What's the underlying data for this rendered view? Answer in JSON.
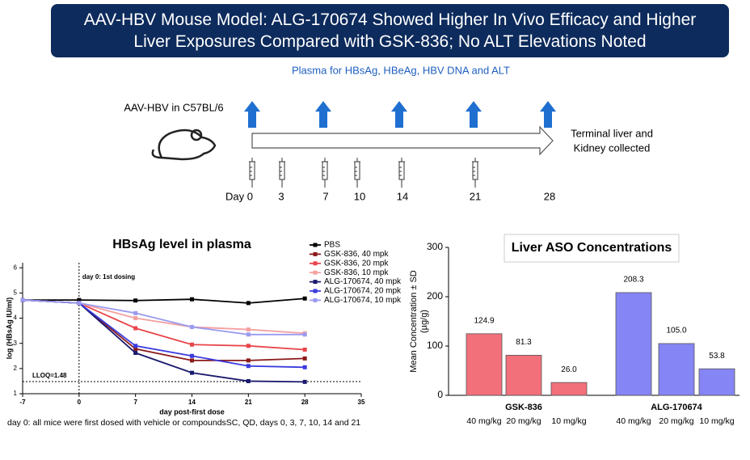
{
  "header": {
    "title": "AAV-HBV Mouse Model: ALG-170674 Showed Higher In Vivo Efficacy and Higher Liver Exposures Compared with GSK-836; No ALT Elevations Noted"
  },
  "timeline": {
    "sampling_label": "Plasma for HBsAg, HBeAg, HBV DNA and ALT",
    "model_label": "AAV-HBV in C57BL/6",
    "end_label": [
      "Terminal liver and",
      "Kidney collected"
    ],
    "days": [
      "Day 0",
      "3",
      "7",
      "10",
      "14",
      "21",
      "28"
    ]
  },
  "chart_data": [
    {
      "type": "line",
      "title": "HBsAg level in plasma",
      "x_label": "day post-first dose",
      "y_label": "log (HBsAg IU/ml)",
      "x": [
        -7,
        0,
        7,
        14,
        21,
        28
      ],
      "xlim": [
        -7,
        35
      ],
      "xticks": [
        -7,
        0,
        7,
        14,
        21,
        28,
        35
      ],
      "ylim": [
        1,
        6.2
      ],
      "yticks": [
        1,
        2,
        3,
        4,
        5,
        6
      ],
      "annotation": "day 0: 1st dosing",
      "dosing_day": 0,
      "lloq": 1.48,
      "lloq_label": "LLOQ=1.48",
      "legend": "upper right",
      "footnote": "day 0: all mice were first dosed with vehicle or compoundsSC, QD, days 0, 3, 7, 10, 14 and 21",
      "series": [
        {
          "name": "PBS",
          "color": "#000000",
          "values": [
            4.72,
            4.72,
            4.7,
            4.75,
            4.6,
            4.78
          ]
        },
        {
          "name": "GSK-836, 40 mpk",
          "color": "#8b1a1a",
          "values": [
            4.72,
            4.6,
            2.78,
            2.32,
            2.32,
            2.4
          ]
        },
        {
          "name": "GSK-836, 20 mpk",
          "color": "#e8454a",
          "values": [
            4.72,
            4.6,
            3.6,
            2.95,
            2.9,
            2.75
          ]
        },
        {
          "name": "GSK-836, 10 mpk",
          "color": "#f4a0a0",
          "values": [
            4.72,
            4.6,
            4.0,
            3.65,
            3.55,
            3.4
          ]
        },
        {
          "name": "ALG-170674, 40 mpk",
          "color": "#1a1a6e",
          "values": [
            4.72,
            4.6,
            2.62,
            1.83,
            1.5,
            1.47
          ]
        },
        {
          "name": "ALG-170674, 20 mpk",
          "color": "#3a3adf",
          "values": [
            4.72,
            4.6,
            2.9,
            2.5,
            2.1,
            2.05
          ]
        },
        {
          "name": "ALG-170674, 10 mpk",
          "color": "#9a9af0",
          "values": [
            4.72,
            4.6,
            4.2,
            3.65,
            3.35,
            3.35
          ]
        }
      ]
    },
    {
      "type": "bar",
      "title": "Liver ASO Concentrations",
      "y_label": [
        "Mean Concentration ± SD",
        "(µg/g)"
      ],
      "ylim": [
        0,
        300
      ],
      "yticks": [
        0,
        100,
        200,
        300
      ],
      "groups": [
        {
          "name": "GSK-836",
          "color": "#f2707a"
        },
        {
          "name": "ALG-170674",
          "color": "#8585f5"
        }
      ],
      "categories": [
        "40 mg/kg",
        "20 mg/kg",
        "10 mg/kg",
        "40 mg/kg",
        "20 mg/kg",
        "10 mg/kg"
      ],
      "values": [
        124.9,
        81.3,
        26.0,
        208.3,
        105.0,
        53.8
      ],
      "value_labels": [
        "124.9",
        "81.3",
        "26.0",
        "208.3",
        "105.0",
        "53.8"
      ]
    }
  ]
}
